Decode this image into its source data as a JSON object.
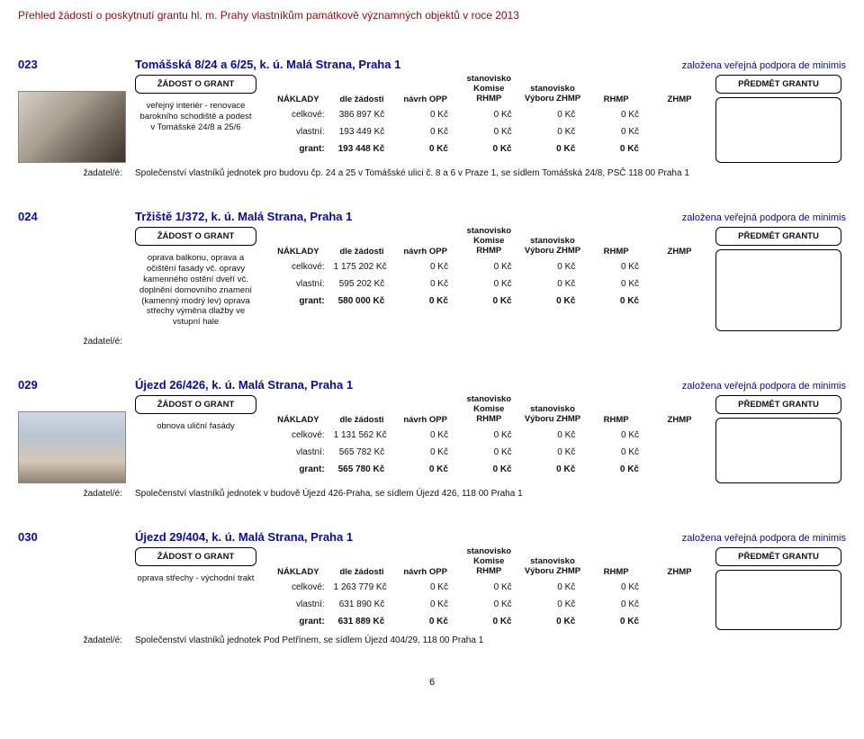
{
  "page_title": "Přehled žádostí o poskytnutí grantu hl. m. Prahy vlastníkům památkově významných objektů v roce 2013",
  "page_number": "6",
  "labels": {
    "grant_request": "ŽÁDOST O GRANT",
    "grant_subject": "PŘEDMĚT GRANTU",
    "costs": "NÁKLADY",
    "by_request": "dle žádosti",
    "opp_proposal": "návrh OPP",
    "rhmp_opinion_l1": "stanovisko",
    "rhmp_opinion_l2": "Komise RHMP",
    "zhmp_opinion_l1": "stanovisko",
    "zhmp_opinion_l2": "Výboru ZHMP",
    "rhmp": "RHMP",
    "zhmp": "ZHMP",
    "total": "celkové:",
    "own": "vlastní:",
    "grant": "grant:",
    "applicant": "žadatel/é:"
  },
  "status_text": "založena veřejná podpora de minimis",
  "entries": [
    {
      "num": "023",
      "addr": "Tomášská 8/24 a 6/25, k. ú. Malá Strana, Praha 1",
      "has_image": true,
      "image_class": "",
      "desc": "veřejný interiér - renovace barokního schodiště a podest v Tomášské 24/8 a 25/6",
      "rows": {
        "total": {
          "req": "386 897 Kč",
          "opp": "0 Kč",
          "rhmp_op": "0 Kč",
          "zhmp_op": "0 Kč",
          "rhmp": "0 Kč",
          "zhmp": ""
        },
        "own": {
          "req": "193 449 Kč",
          "opp": "0 Kč",
          "rhmp_op": "0 Kč",
          "zhmp_op": "0 Kč",
          "rhmp": "0 Kč",
          "zhmp": ""
        },
        "grant": {
          "req": "193 448 Kč",
          "opp": "0 Kč",
          "rhmp_op": "0 Kč",
          "zhmp_op": "0 Kč",
          "rhmp": "0 Kč",
          "zhmp": ""
        }
      },
      "applicant": "Společenství vlastníků jednotek pro budovu čp. 24 a 25 v Tomášské ulici č. 8 a 6 v Praze 1, se sídlem Tomášská 24/8, PSČ 118 00 Praha 1"
    },
    {
      "num": "024",
      "addr": "Tržiště 1/372, k. ú. Malá Strana, Praha 1",
      "has_image": false,
      "image_class": "",
      "desc": "oprava balkonu, oprava a očištění fasády vč. opravy kamenného ostění dveří vč. doplnění domovního znamení (kamenný modrý lev)\noprava střechy\nvýměna dlažby ve vstupní hale",
      "rows": {
        "total": {
          "req": "1 175 202 Kč",
          "opp": "0 Kč",
          "rhmp_op": "0 Kč",
          "zhmp_op": "0 Kč",
          "rhmp": "0 Kč",
          "zhmp": ""
        },
        "own": {
          "req": "595 202 Kč",
          "opp": "0 Kč",
          "rhmp_op": "0 Kč",
          "zhmp_op": "0 Kč",
          "rhmp": "0 Kč",
          "zhmp": ""
        },
        "grant": {
          "req": "580 000 Kč",
          "opp": "0 Kč",
          "rhmp_op": "0 Kč",
          "zhmp_op": "0 Kč",
          "rhmp": "0 Kč",
          "zhmp": ""
        }
      },
      "applicant": ""
    },
    {
      "num": "029",
      "addr": "Újezd 26/426, k. ú. Malá Strana, Praha 1",
      "has_image": true,
      "image_class": "bldg",
      "desc": "obnova uliční fasády",
      "rows": {
        "total": {
          "req": "1 131 562 Kč",
          "opp": "0 Kč",
          "rhmp_op": "0 Kč",
          "zhmp_op": "0 Kč",
          "rhmp": "0 Kč",
          "zhmp": ""
        },
        "own": {
          "req": "565 782 Kč",
          "opp": "0 Kč",
          "rhmp_op": "0 Kč",
          "zhmp_op": "0 Kč",
          "rhmp": "0 Kč",
          "zhmp": ""
        },
        "grant": {
          "req": "565 780 Kč",
          "opp": "0 Kč",
          "rhmp_op": "0 Kč",
          "zhmp_op": "0 Kč",
          "rhmp": "0 Kč",
          "zhmp": ""
        }
      },
      "applicant": "Společenství vlastníků jednotek v budově Újezd 426-Praha, se sídlem Újezd 426, 118 00 Praha 1"
    },
    {
      "num": "030",
      "addr": "Újezd 29/404, k. ú. Malá Strana, Praha 1",
      "has_image": false,
      "image_class": "",
      "desc": "oprava střechy - východní trakt",
      "rows": {
        "total": {
          "req": "1 263 779 Kč",
          "opp": "0 Kč",
          "rhmp_op": "0 Kč",
          "zhmp_op": "0 Kč",
          "rhmp": "0 Kč",
          "zhmp": ""
        },
        "own": {
          "req": "631 890 Kč",
          "opp": "0 Kč",
          "rhmp_op": "0 Kč",
          "zhmp_op": "0 Kč",
          "rhmp": "0 Kč",
          "zhmp": ""
        },
        "grant": {
          "req": "631 889 Kč",
          "opp": "0 Kč",
          "rhmp_op": "0 Kč",
          "zhmp_op": "0 Kč",
          "rhmp": "0 Kč",
          "zhmp": ""
        }
      },
      "applicant": "Společenství vlastníků jednotek Pod Petřínem, se sídlem Újezd 404/29, 118 00 Praha 1"
    }
  ]
}
